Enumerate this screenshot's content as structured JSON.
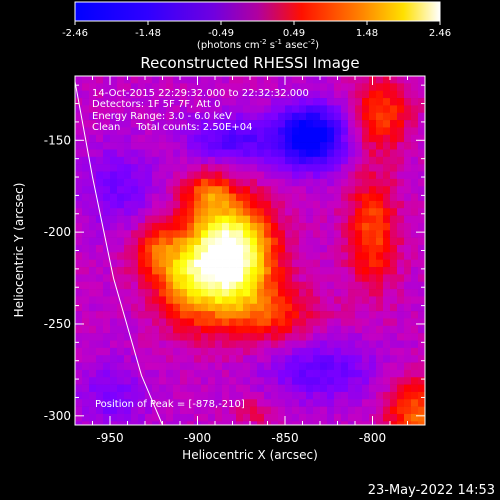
{
  "colorbar": {
    "tick_labels": [
      "-2.46",
      "-1.48",
      "-0.49",
      "0.49",
      "1.48",
      "2.46"
    ],
    "unit_prefix": "(photons cm",
    "unit_exp1": "-2",
    "unit_mid": " s",
    "unit_exp2": "-1",
    "unit_mid2": " asec",
    "unit_exp3": "-2",
    "unit_suffix": ")"
  },
  "annotations": {
    "time_range": "14-Oct-2015 22:29:32.000 to 22:32:32.000",
    "detectors": "Detectors: 1F 5F 7F, Att 0",
    "energy_range": "Energy Range: 3.0 - 6.0 keV",
    "clean_counts": "Clean     Total counts: 2.50E+04",
    "peak": "Position of Peak = [-878,-210]"
  },
  "footer": {
    "date": "23-May-2022 14:53"
  },
  "chart_data": {
    "type": "heatmap",
    "title": "Reconstructed RHESSI Image",
    "xlabel": "Heliocentric X (arcsec)",
    "ylabel": "Heliocentric Y (arcsec)",
    "xlim": [
      -970,
      -770
    ],
    "ylim": [
      -305,
      -115
    ],
    "x_ticks": [
      -950,
      -900,
      -850,
      -800
    ],
    "y_ticks": [
      -150,
      -200,
      -250,
      -300
    ],
    "x_tick_labels": [
      "-950",
      "-900",
      "-850",
      "-800"
    ],
    "y_tick_labels": [
      "-150",
      "-200",
      "-250",
      "-300"
    ],
    "color_range": [
      -2.46,
      2.46
    ],
    "colormap": [
      "#0000ff",
      "#4000ff",
      "#8000ff",
      "#c800c0",
      "#ff0000",
      "#ff8000",
      "#ffff00",
      "#ffffff"
    ],
    "peak_position": [
      -878,
      -210
    ],
    "peak_value": 2.46,
    "limb_curve": [
      [
        -970,
        -118
      ],
      [
        -960,
        -170
      ],
      [
        -948,
        -225
      ],
      [
        -932,
        -278
      ],
      [
        -920,
        -305
      ]
    ],
    "sources": [
      {
        "x": -880,
        "y": -212,
        "sigma_x": 16,
        "sigma_y": 20,
        "amp": 3.1
      },
      {
        "x": -905,
        "y": -225,
        "sigma_x": 14,
        "sigma_y": 18,
        "amp": 1.6
      },
      {
        "x": -925,
        "y": -210,
        "sigma_x": 10,
        "sigma_y": 10,
        "amp": 0.9
      },
      {
        "x": -895,
        "y": -178,
        "sigma_x": 10,
        "sigma_y": 9,
        "amp": 1.0
      },
      {
        "x": -858,
        "y": -245,
        "sigma_x": 20,
        "sigma_y": 12,
        "amp": 0.9
      },
      {
        "x": -800,
        "y": -200,
        "sigma_x": 10,
        "sigma_y": 22,
        "amp": 1.2
      },
      {
        "x": -795,
        "y": -135,
        "sigma_x": 12,
        "sigma_y": 14,
        "amp": 1.1
      },
      {
        "x": -775,
        "y": -300,
        "sigma_x": 12,
        "sigma_y": 14,
        "amp": 1.3
      },
      {
        "x": -868,
        "y": -298,
        "sigma_x": 8,
        "sigma_y": 6,
        "amp": 0.5
      },
      {
        "x": -835,
        "y": -148,
        "sigma_x": 14,
        "sigma_y": 12,
        "amp": -2.3
      },
      {
        "x": -880,
        "y": -150,
        "sigma_x": 18,
        "sigma_y": 10,
        "amp": -1.1
      },
      {
        "x": -945,
        "y": -175,
        "sigma_x": 14,
        "sigma_y": 16,
        "amp": -0.7
      },
      {
        "x": -830,
        "y": -275,
        "sigma_x": 22,
        "sigma_y": 12,
        "amp": -0.9
      },
      {
        "x": -950,
        "y": -290,
        "sigma_x": 14,
        "sigma_y": 14,
        "amp": -0.6
      }
    ],
    "background": -0.45
  }
}
